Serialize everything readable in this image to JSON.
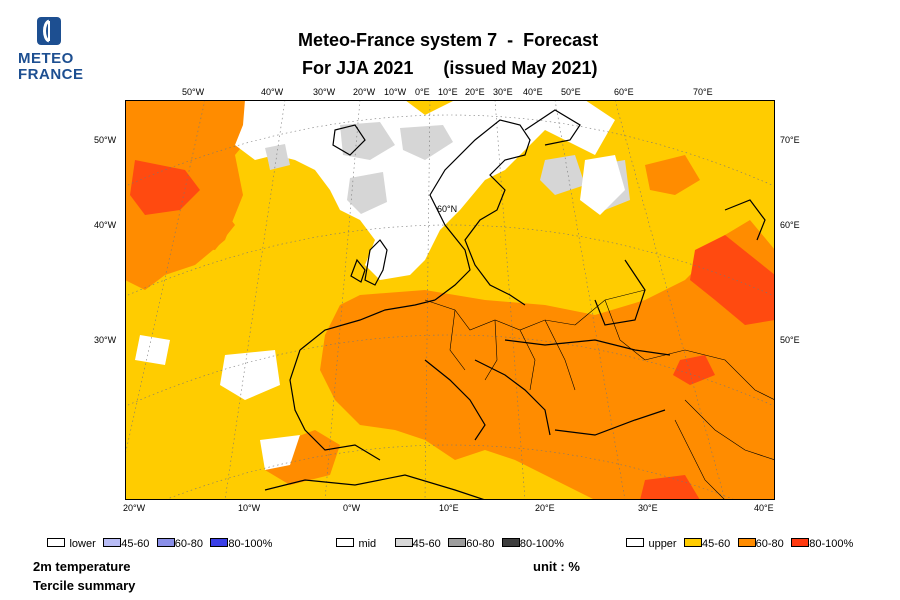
{
  "logo": {
    "line1": "METEO",
    "line2": "FRANCE"
  },
  "title": {
    "line1": "Meteo-France system 7  -  Forecast",
    "line2": "For JJA 2021      (issued May 2021)"
  },
  "map": {
    "region": "Europe / North Atlantic",
    "center_label": "60°N",
    "top_ticks": [
      "50°W",
      "40°W",
      "30°W",
      "20°W",
      "10°W",
      "0°E",
      "10°E",
      "20°E",
      "30°E",
      "40°E",
      "50°E",
      "60°E",
      "70°E"
    ],
    "bottom_ticks": [
      "20°W",
      "10°W",
      "0°W",
      "10°E",
      "20°E",
      "30°E",
      "40°E"
    ],
    "left_ticks": [
      "50°W",
      "40°W",
      "30°W"
    ],
    "right_ticks": [
      "70°E",
      "60°E",
      "50°E"
    ]
  },
  "legend": {
    "lower": {
      "name": "lower",
      "bins": [
        "45-60",
        "60-80",
        "80-100%"
      ],
      "colors": [
        "#b8bcf5",
        "#8a8fe8",
        "#3a3fe6"
      ]
    },
    "mid": {
      "name": "mid",
      "bins": [
        "45-60",
        "60-80",
        "80-100%"
      ],
      "colors": [
        "#d8d8d8",
        "#9e9e9e",
        "#3e3e3e"
      ]
    },
    "upper": {
      "name": "upper",
      "bins": [
        "45-60",
        "60-80",
        "80-100%"
      ],
      "colors": [
        "#ffcc00",
        "#ff8c00",
        "#ff3a10"
      ]
    }
  },
  "footer": {
    "variable": "2m temperature",
    "summary": "Tercile summary",
    "unit": "unit : %"
  },
  "colors": {
    "white": "#ffffff",
    "yellow": "#ffcc00",
    "orange": "#ff8c00",
    "red": "#ff4a10",
    "grey": "#d6d6d6"
  }
}
